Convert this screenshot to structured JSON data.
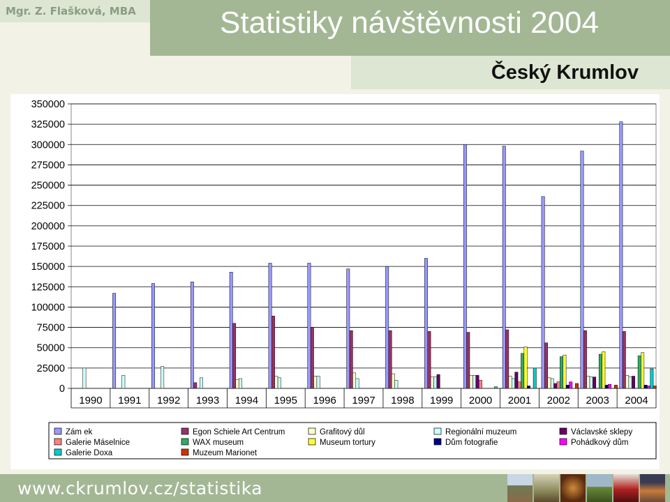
{
  "header": {
    "author": "Mgr. Z. Flašková, MBA",
    "title": "Statistiky návštěvnosti 2004",
    "subtitle": "Český Krumlov"
  },
  "footer": {
    "url": "www.ckrumlov.cz/statistika"
  },
  "chart_data": {
    "type": "bar",
    "title": "",
    "xlabel": "",
    "ylabel": "",
    "ylim": [
      0,
      350000
    ],
    "yticks": [
      "0",
      "25000",
      "50000",
      "75000",
      "100000",
      "125000",
      "150000",
      "175000",
      "200000",
      "225000",
      "250000",
      "275000",
      "300000",
      "325000",
      "350000"
    ],
    "grid": true,
    "legend_position": "bottom",
    "categories": [
      "1990",
      "1991",
      "1992",
      "1993",
      "1994",
      "1995",
      "1996",
      "1997",
      "1998",
      "1999",
      "2000",
      "2001",
      "2002",
      "2003",
      "2004"
    ],
    "series": [
      {
        "name": "Zám ek",
        "color": "#9999ff",
        "values": [
          0,
          117000,
          129000,
          131000,
          143000,
          154000,
          154000,
          147000,
          150000,
          160000,
          300000,
          298000,
          236000,
          292000,
          328000
        ]
      },
      {
        "name": "Egon Schiele Art Centrum",
        "color": "#993366",
        "values": [
          0,
          0,
          0,
          7000,
          80000,
          89000,
          75000,
          71000,
          71000,
          70000,
          69000,
          72000,
          56000,
          71000,
          70000
        ]
      },
      {
        "name": "Grafitový důl",
        "color": "#ffffcc",
        "values": [
          0,
          0,
          0,
          0,
          11000,
          15000,
          15000,
          19000,
          18000,
          14000,
          16000,
          15000,
          13000,
          15000,
          16000
        ]
      },
      {
        "name": "Regionální muzeum",
        "color": "#ccffff",
        "values": [
          25000,
          16000,
          27000,
          13000,
          12000,
          13000,
          15000,
          12000,
          10000,
          14000,
          16000,
          12000,
          12000,
          14000,
          14000
        ]
      },
      {
        "name": "Václavské sklepy",
        "color": "#660066",
        "values": [
          0,
          0,
          0,
          0,
          0,
          0,
          0,
          0,
          0,
          17000,
          16000,
          20000,
          6000,
          14000,
          15000
        ]
      },
      {
        "name": "Galerie Máselnice",
        "color": "#ff8080",
        "values": [
          0,
          0,
          0,
          0,
          0,
          0,
          0,
          0,
          0,
          0,
          10000,
          8000,
          8000,
          0,
          0
        ]
      },
      {
        "name": "WAX museum",
        "color": "#33aa66",
        "values": [
          0,
          0,
          0,
          0,
          0,
          0,
          0,
          0,
          0,
          0,
          0,
          43000,
          39000,
          42000,
          40000
        ]
      },
      {
        "name": "Museum tortury",
        "color": "#ffff33",
        "values": [
          0,
          0,
          0,
          0,
          0,
          0,
          0,
          0,
          0,
          0,
          0,
          51000,
          41000,
          45000,
          44000
        ]
      },
      {
        "name": "Dům fotografie",
        "color": "#000080",
        "values": [
          0,
          0,
          0,
          0,
          0,
          0,
          0,
          0,
          0,
          0,
          0,
          3000,
          4000,
          4000,
          4000
        ]
      },
      {
        "name": "Pohádkový dům",
        "color": "#ff00ff",
        "values": [
          0,
          0,
          0,
          0,
          0,
          0,
          0,
          0,
          0,
          0,
          0,
          0,
          8000,
          5000,
          3000
        ]
      },
      {
        "name": "Galerie Doxa",
        "color": "#00cccc",
        "values": [
          0,
          0,
          0,
          0,
          0,
          0,
          0,
          0,
          0,
          0,
          2000,
          25000,
          0,
          0,
          24000
        ]
      },
      {
        "name": "Muzeum Marionet",
        "color": "#cc3300",
        "values": [
          0,
          0,
          0,
          0,
          0,
          0,
          0,
          0,
          0,
          0,
          0,
          0,
          6000,
          4000,
          3000
        ]
      }
    ]
  }
}
